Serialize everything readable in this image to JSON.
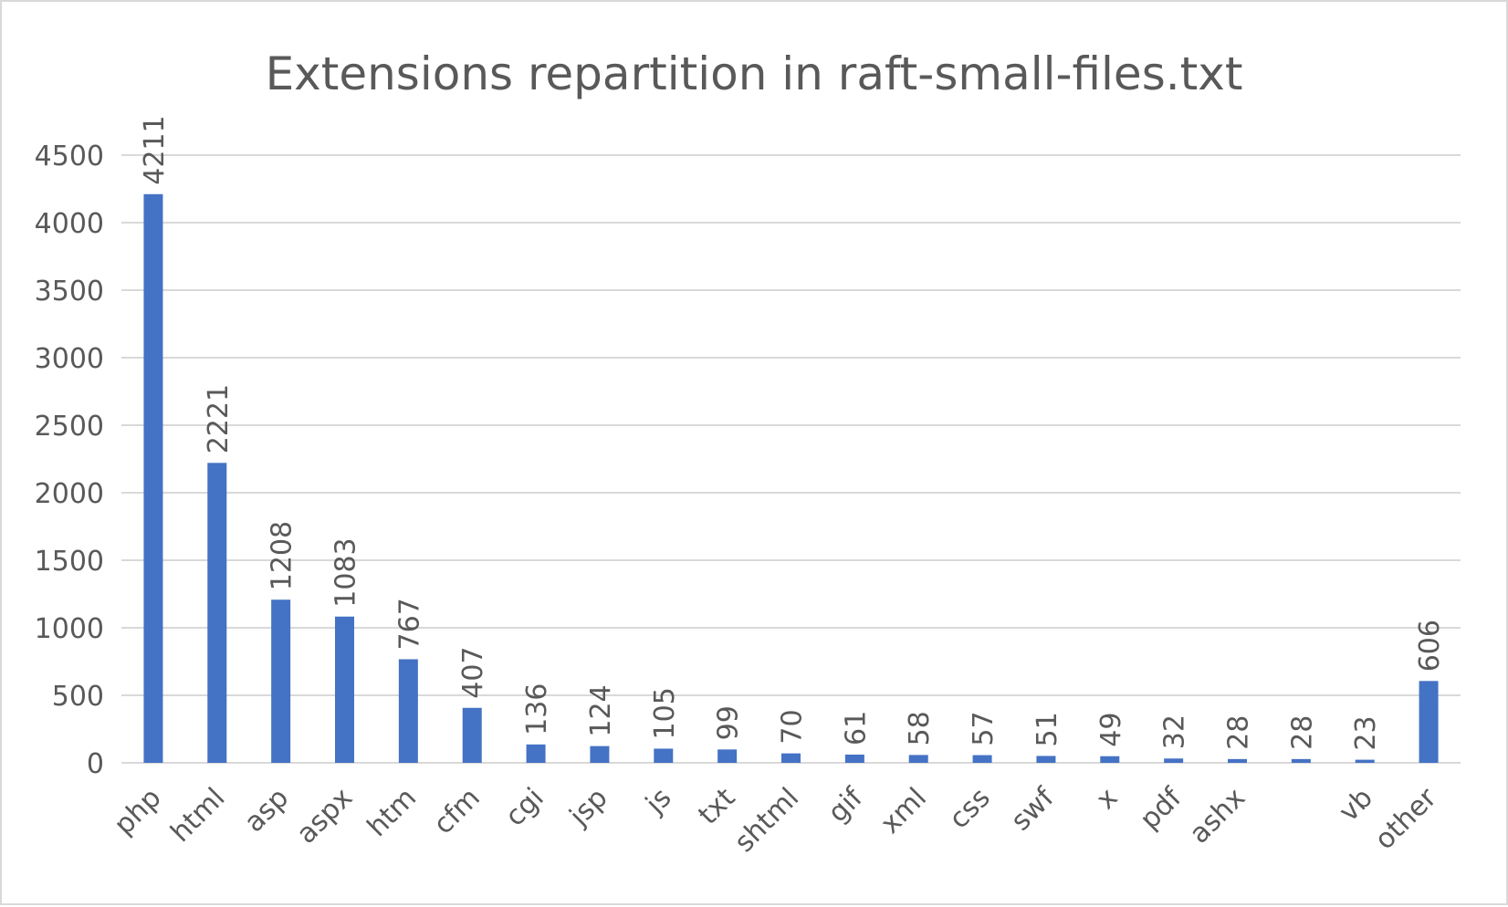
{
  "chart_data": {
    "type": "bar",
    "title": "Extensions repartition in raft-small-files.txt",
    "xlabel": "",
    "ylabel": "",
    "ylim": [
      0,
      4500
    ],
    "yticks": [
      "0",
      "500",
      "1000",
      "1500",
      "2000",
      "2500",
      "3000",
      "3500",
      "4000",
      "4500"
    ],
    "grid": true,
    "legend": "none",
    "bar_color": "#4472C4",
    "categories": [
      "php",
      "html",
      "asp",
      "aspx",
      "htm",
      "cfm",
      "cgi",
      "jsp",
      "js",
      "txt",
      "shtml",
      "gif",
      "xml",
      "css",
      "swf",
      "x",
      "pdf",
      "ashx",
      "",
      "vb",
      "other"
    ],
    "values": [
      4211,
      2221,
      1208,
      1083,
      767,
      407,
      136,
      124,
      105,
      99,
      70,
      61,
      58,
      57,
      51,
      49,
      32,
      28,
      28,
      23,
      606
    ]
  }
}
